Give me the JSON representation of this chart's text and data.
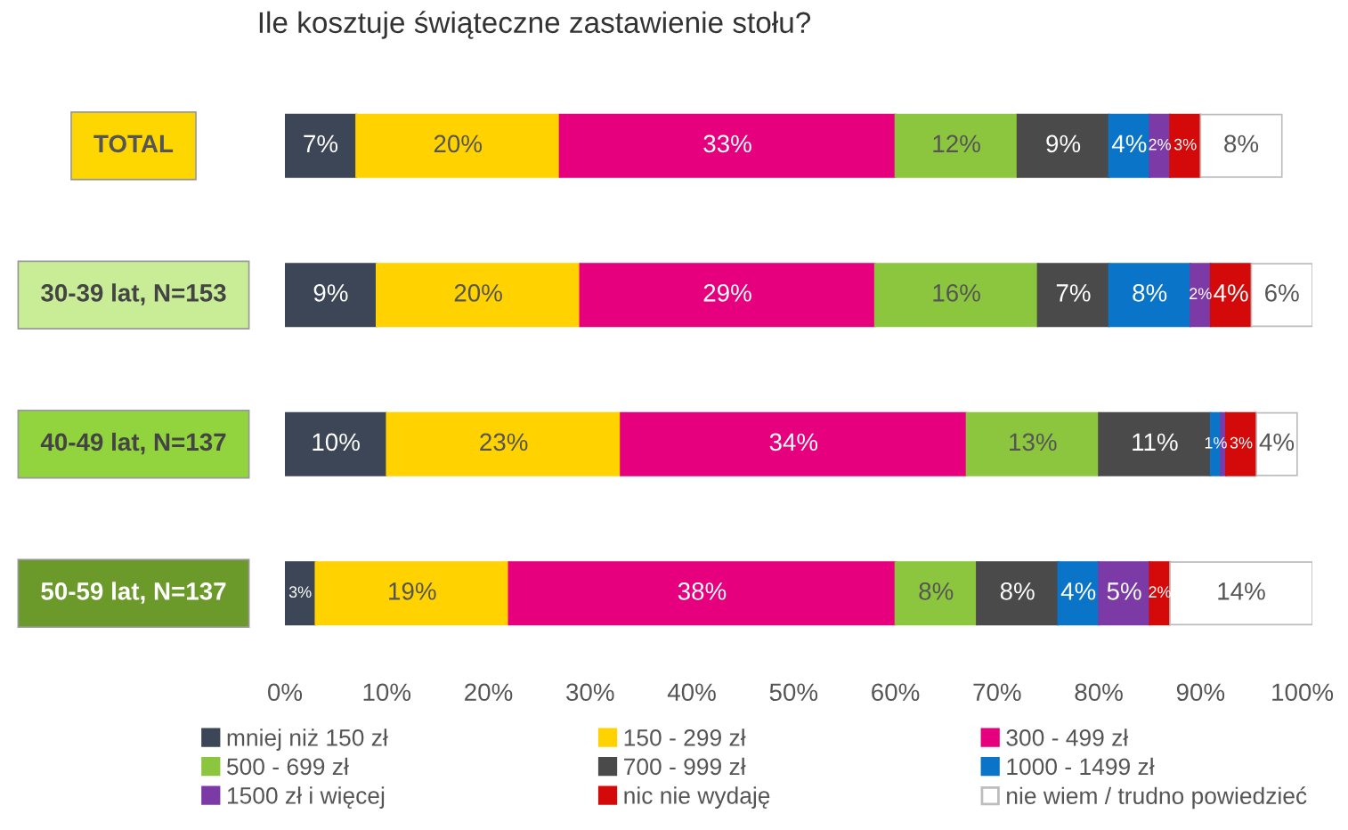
{
  "chart_data": {
    "type": "bar",
    "orientation": "horizontal",
    "stacked": true,
    "title": "Ile kosztuje świąteczne zastawienie stołu?",
    "categories": [
      "TOTAL",
      "30-39 lat, N=153",
      "40-49 lat, N=137",
      "50-59 lat, N=137"
    ],
    "series": [
      {
        "name": "mniej niż 150 zł",
        "color": "#3c4656",
        "values": [
          7,
          9,
          10,
          3
        ],
        "value_labels": [
          "7%",
          "9%",
          "10%",
          "3%"
        ]
      },
      {
        "name": "150 - 299 zł",
        "color": "#ffd200",
        "values": [
          20,
          20,
          23,
          19
        ],
        "value_labels": [
          "20%",
          "20%",
          "23%",
          "19%"
        ]
      },
      {
        "name": "300 - 499 zł",
        "color": "#e6007e",
        "values": [
          33,
          29,
          34,
          38
        ],
        "value_labels": [
          "33%",
          "29%",
          "34%",
          "38%"
        ]
      },
      {
        "name": "500 - 699 zł",
        "color": "#8cc63e",
        "values": [
          12,
          16,
          13,
          8
        ],
        "value_labels": [
          "12%",
          "16%",
          "13%",
          "8%"
        ]
      },
      {
        "name": "700 - 999 zł",
        "color": "#4a4a4a",
        "values": [
          9,
          7,
          11,
          8
        ],
        "value_labels": [
          "9%",
          "7%",
          "11%",
          "8%"
        ]
      },
      {
        "name": "1000 - 1499 zł",
        "color": "#0a74c8",
        "values": [
          4,
          8,
          1,
          4
        ],
        "value_labels": [
          "4%",
          "8%",
          "1%",
          "4%"
        ]
      },
      {
        "name": "1500 zł i więcej",
        "color": "#7b3aa6",
        "values": [
          2,
          2,
          0.5,
          5
        ],
        "value_labels": [
          "2%",
          "2%",
          null,
          "5%"
        ]
      },
      {
        "name": "nic nie wydaję",
        "color": "#d40a0a",
        "values": [
          3,
          4,
          3,
          2
        ],
        "value_labels": [
          "3%",
          "4%",
          "3%",
          "2%"
        ]
      },
      {
        "name": "nie wiem / trudno powiedzieć",
        "color": "#ffffff",
        "values": [
          8,
          6,
          4,
          14
        ],
        "value_labels": [
          "8%",
          "6%",
          "4%",
          "14%"
        ]
      }
    ],
    "xlim": [
      0,
      101
    ],
    "xticks": [
      {
        "value": 0,
        "label": "0%"
      },
      {
        "value": 10,
        "label": "10%"
      },
      {
        "value": 20,
        "label": "20%"
      },
      {
        "value": 30,
        "label": "30%"
      },
      {
        "value": 40,
        "label": "40%"
      },
      {
        "value": 50,
        "label": "50%"
      },
      {
        "value": 60,
        "label": "60%"
      },
      {
        "value": 70,
        "label": "70%"
      },
      {
        "value": 80,
        "label": "80%"
      },
      {
        "value": 90,
        "label": "90%"
      },
      {
        "value": 100,
        "label": "100%"
      }
    ],
    "grid": false,
    "legend": "bottom"
  }
}
